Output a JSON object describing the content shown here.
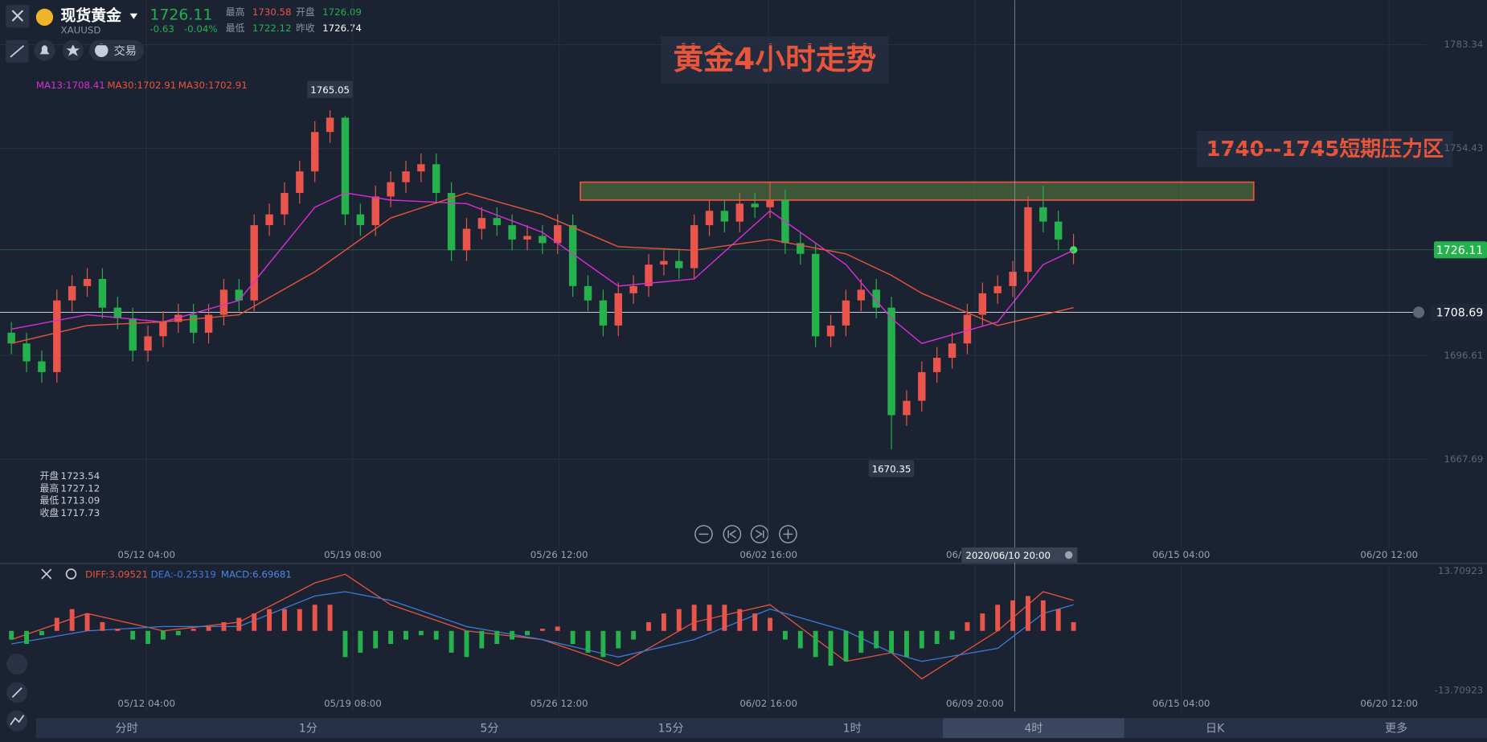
{
  "header": {
    "name": "现货黄金",
    "symbol": "XAUUSD",
    "change": "-0.63",
    "change_pct": "-0.04%",
    "high_label": "最高",
    "open_label": "开盘",
    "low_label": "最低",
    "prev_close_label": "昨收",
    "prev_close": "1726.74",
    "trade": "交易"
  },
  "tabs": {
    "items": [
      "分时",
      "1分",
      "5分",
      "15分",
      "1时",
      "4时",
      "日K",
      "更多"
    ],
    "active": "4时"
  },
  "chart_data": [
    {
      "type": "candlestick",
      "title": "黄金4小时走势",
      "zone": {
        "label": "1740--1745短期压力区",
        "low": 1740,
        "high": 1745
      },
      "xlim": [
        -0.75,
        97.25
      ],
      "ylim": [
        1642.83,
        1795.78
      ],
      "yticks": [
        1783.34,
        1754.43,
        1696.61,
        1667.69
      ],
      "xticks": [
        {
          "value": 8.9,
          "label": "05/12 04:00"
        },
        {
          "value": 22.5,
          "label": "05/19 08:00"
        },
        {
          "value": 36.1,
          "label": "05/26 12:00"
        },
        {
          "value": 49.9,
          "label": "06/02 16:00"
        },
        {
          "value": 63.5,
          "label": "06/09 20:00"
        },
        {
          "value": 77.1,
          "label": "06/15 04:00"
        },
        {
          "value": 90.8,
          "label": "06/20 12:00"
        }
      ],
      "up_color": "#e9544b",
      "down_color": "#25b14c",
      "alert_line": 1708.69,
      "crosshair_label": "2020/06/10 20:00",
      "ohlc_box": {
        "labels": [
          "开盘",
          "最高",
          "最低",
          "收盘"
        ],
        "values": [
          1723.54,
          1727.12,
          1713.09,
          1717.73
        ]
      },
      "candles": {
        "open": [
          1703,
          1700,
          1695,
          1692,
          1712,
          1716,
          1718,
          1710,
          1707,
          1698,
          1702,
          1706,
          1708,
          1703,
          1708,
          1715,
          1712,
          1733,
          1736,
          1742,
          1748,
          1759,
          1763,
          1736,
          1733,
          1741,
          1745,
          1748,
          1750,
          1742,
          1726,
          1732,
          1735,
          1733,
          1729,
          1730,
          1728,
          1733,
          1716,
          1712,
          1705,
          1714,
          1716,
          1722,
          1723,
          1721,
          1733,
          1737,
          1734,
          1739,
          1738,
          1740,
          1728,
          1725,
          1702,
          1705,
          1712,
          1715,
          1710,
          1680,
          1684,
          1692,
          1696,
          1700,
          1708,
          1714,
          1716,
          1720,
          1738,
          1734,
          1726.09
        ],
        "high": [
          1706,
          1703,
          1698,
          1715,
          1719,
          1721,
          1721,
          1713,
          1710,
          1705,
          1709,
          1711,
          1711,
          1711,
          1718,
          1718,
          1736,
          1739,
          1745,
          1751,
          1762,
          1765.05,
          1763.5,
          1739,
          1744,
          1748,
          1751,
          1753,
          1753,
          1745,
          1735,
          1738,
          1738,
          1736,
          1733,
          1733,
          1736,
          1736,
          1719,
          1715,
          1717,
          1719,
          1725,
          1726,
          1726,
          1736,
          1740,
          1740,
          1742,
          1742,
          1745,
          1743,
          1731,
          1728,
          1708,
          1715,
          1718,
          1718,
          1713,
          1687,
          1695,
          1699,
          1703,
          1711,
          1717,
          1719,
          1723,
          1741,
          1744,
          1737,
          1730.58
        ],
        "low": [
          1697,
          1692,
          1689,
          1689,
          1709,
          1713,
          1707,
          1704,
          1695,
          1695,
          1699,
          1703,
          1700,
          1700,
          1705,
          1709,
          1709,
          1730,
          1733,
          1739,
          1745,
          1756,
          1733,
          1730,
          1730,
          1738,
          1742,
          1745,
          1739,
          1723,
          1723,
          1729,
          1730,
          1726,
          1726,
          1725,
          1725,
          1713,
          1709,
          1702,
          1702,
          1711,
          1713,
          1719,
          1718,
          1718,
          1730,
          1731,
          1731,
          1735,
          1735,
          1725,
          1722,
          1699,
          1699,
          1702,
          1709,
          1707,
          1670.35,
          1677,
          1681,
          1689,
          1693,
          1697,
          1705,
          1711,
          1713,
          1717,
          1731,
          1726,
          1722.12
        ],
        "close": [
          1700,
          1695,
          1692,
          1712,
          1716,
          1718,
          1710,
          1707,
          1698,
          1702,
          1706,
          1708,
          1703,
          1708,
          1715,
          1712,
          1733,
          1736,
          1742,
          1748,
          1759,
          1763,
          1736,
          1733,
          1741,
          1745,
          1748,
          1750,
          1742,
          1726,
          1732,
          1735,
          1733,
          1729,
          1730,
          1728,
          1733,
          1716,
          1712,
          1705,
          1714,
          1716,
          1722,
          1723,
          1721,
          1733,
          1737,
          1734,
          1739,
          1738,
          1740,
          1728,
          1725,
          1702,
          1705,
          1712,
          1715,
          1710,
          1680,
          1684,
          1692,
          1696,
          1700,
          1708,
          1714,
          1716,
          1720,
          1738,
          1734,
          1729,
          1726.11
        ]
      },
      "series": [
        {
          "name": "MA13:1708.41",
          "color": "#d62fd6",
          "x": [
            0,
            5,
            10,
            15,
            20,
            22,
            25,
            30,
            35,
            40,
            45,
            50,
            55,
            58,
            60,
            65,
            68,
            70
          ],
          "values": [
            1704,
            1708,
            1706,
            1712,
            1738,
            1742,
            1740,
            1739,
            1731,
            1716,
            1718,
            1737,
            1722,
            1707,
            1700,
            1706,
            1722,
            1726
          ]
        },
        {
          "name": "MA30:1702.91",
          "color": "#e8553a",
          "x": [
            0,
            5,
            10,
            15,
            20,
            22,
            25,
            30,
            35,
            40,
            45,
            50,
            55,
            58,
            60,
            65,
            68,
            70
          ],
          "values": [
            1700,
            1705,
            1706,
            1708,
            1720,
            1726,
            1735,
            1742,
            1736,
            1727,
            1726,
            1729,
            1725,
            1719,
            1714,
            1705,
            1708,
            1710
          ]
        }
      ]
    },
    {
      "type": "macd",
      "xlim": [
        -0.75,
        97.25
      ],
      "ylim": [
        -13.70923,
        13.70923
      ],
      "yticks": [
        13.70923,
        -13.70923
      ],
      "up_color": "#e9544b",
      "down_color": "#25b14c",
      "series": [
        {
          "name": "DIFF:3.09521",
          "color": "#e8553a",
          "x": [
            0,
            5,
            10,
            15,
            20,
            22,
            25,
            30,
            35,
            40,
            45,
            50,
            55,
            58,
            60,
            65,
            68,
            70
          ],
          "values": [
            -2,
            4,
            0,
            2,
            11,
            13,
            6,
            0,
            -2,
            -8,
            2,
            6,
            -7,
            -5,
            -11,
            0,
            9,
            7
          ]
        },
        {
          "name": "DEA:-0.25319",
          "color": "#3d7bd9",
          "x": [
            0,
            5,
            10,
            15,
            20,
            22,
            25,
            30,
            35,
            40,
            45,
            50,
            55,
            58,
            60,
            65,
            68,
            70
          ],
          "values": [
            -3,
            0,
            1,
            1,
            8,
            9,
            7,
            1,
            -2,
            -6,
            -2,
            5,
            0,
            -5,
            -7,
            -4,
            4,
            6
          ]
        },
        {
          "name": "MACD:6.69681",
          "color": "#4a8ae0",
          "values": [
            -2,
            -3,
            -1,
            3,
            5,
            4,
            2,
            0.5,
            -2,
            -3,
            -2,
            -1,
            0.5,
            1,
            2,
            3,
            4,
            5,
            5,
            5,
            6,
            6,
            -6,
            -5,
            -4,
            -3,
            -2,
            -1,
            -2,
            -5,
            -6,
            -4,
            -3,
            -2,
            -1,
            0.5,
            1,
            -3,
            -5,
            -6,
            -4,
            -2,
            2,
            4,
            5,
            6,
            6,
            6,
            5,
            4,
            3,
            -2,
            -4,
            -6,
            -8,
            -7,
            -5,
            -4,
            -5,
            -6,
            -4,
            -3,
            -2,
            2,
            4,
            6,
            7,
            8,
            7,
            5,
            2
          ]
        }
      ]
    }
  ]
}
